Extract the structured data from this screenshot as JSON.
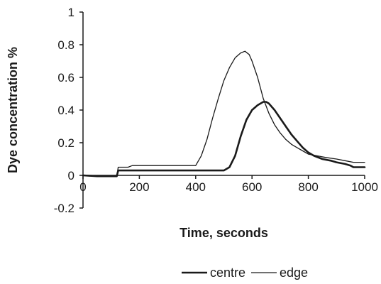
{
  "chart_data": {
    "type": "line",
    "xlabel": "Time, seconds",
    "ylabel": "Dye concentration %",
    "xlim": [
      0,
      1000
    ],
    "ylim": [
      -0.2,
      1
    ],
    "x_ticks": [
      "0",
      "200",
      "400",
      "600",
      "800",
      "1000"
    ],
    "y_ticks": [
      "-0.2",
      "0",
      "0.2",
      "0.4",
      "0.6",
      "0.8",
      "1"
    ],
    "grid": false,
    "legend_position": "bottom",
    "series": [
      {
        "name": "centre",
        "color": "#1a1a1a",
        "line": "thick",
        "x": [
          0,
          50,
          120,
          125,
          140,
          160,
          180,
          200,
          300,
          400,
          500,
          520,
          540,
          560,
          580,
          600,
          620,
          640,
          650,
          660,
          680,
          700,
          720,
          740,
          760,
          780,
          800,
          820,
          850,
          880,
          900,
          930,
          950,
          960,
          1000
        ],
        "y": [
          0,
          -0.005,
          -0.005,
          0.03,
          0.03,
          0.03,
          0.03,
          0.03,
          0.03,
          0.03,
          0.03,
          0.05,
          0.12,
          0.24,
          0.34,
          0.4,
          0.43,
          0.45,
          0.45,
          0.44,
          0.4,
          0.35,
          0.3,
          0.25,
          0.21,
          0.17,
          0.14,
          0.12,
          0.1,
          0.09,
          0.08,
          0.07,
          0.06,
          0.05,
          0.05
        ]
      },
      {
        "name": "edge",
        "color": "#1a1a1a",
        "line": "thin",
        "x": [
          0,
          50,
          120,
          125,
          160,
          175,
          200,
          300,
          400,
          420,
          440,
          460,
          480,
          500,
          520,
          540,
          560,
          575,
          590,
          600,
          620,
          640,
          660,
          680,
          700,
          720,
          740,
          760,
          780,
          800,
          830,
          860,
          900,
          930,
          960,
          1000
        ],
        "y": [
          0,
          -0.005,
          -0.005,
          0.05,
          0.05,
          0.06,
          0.06,
          0.06,
          0.06,
          0.12,
          0.22,
          0.35,
          0.47,
          0.58,
          0.66,
          0.72,
          0.75,
          0.76,
          0.74,
          0.7,
          0.6,
          0.47,
          0.38,
          0.31,
          0.26,
          0.22,
          0.19,
          0.17,
          0.15,
          0.13,
          0.12,
          0.11,
          0.1,
          0.09,
          0.08,
          0.08
        ]
      }
    ]
  }
}
